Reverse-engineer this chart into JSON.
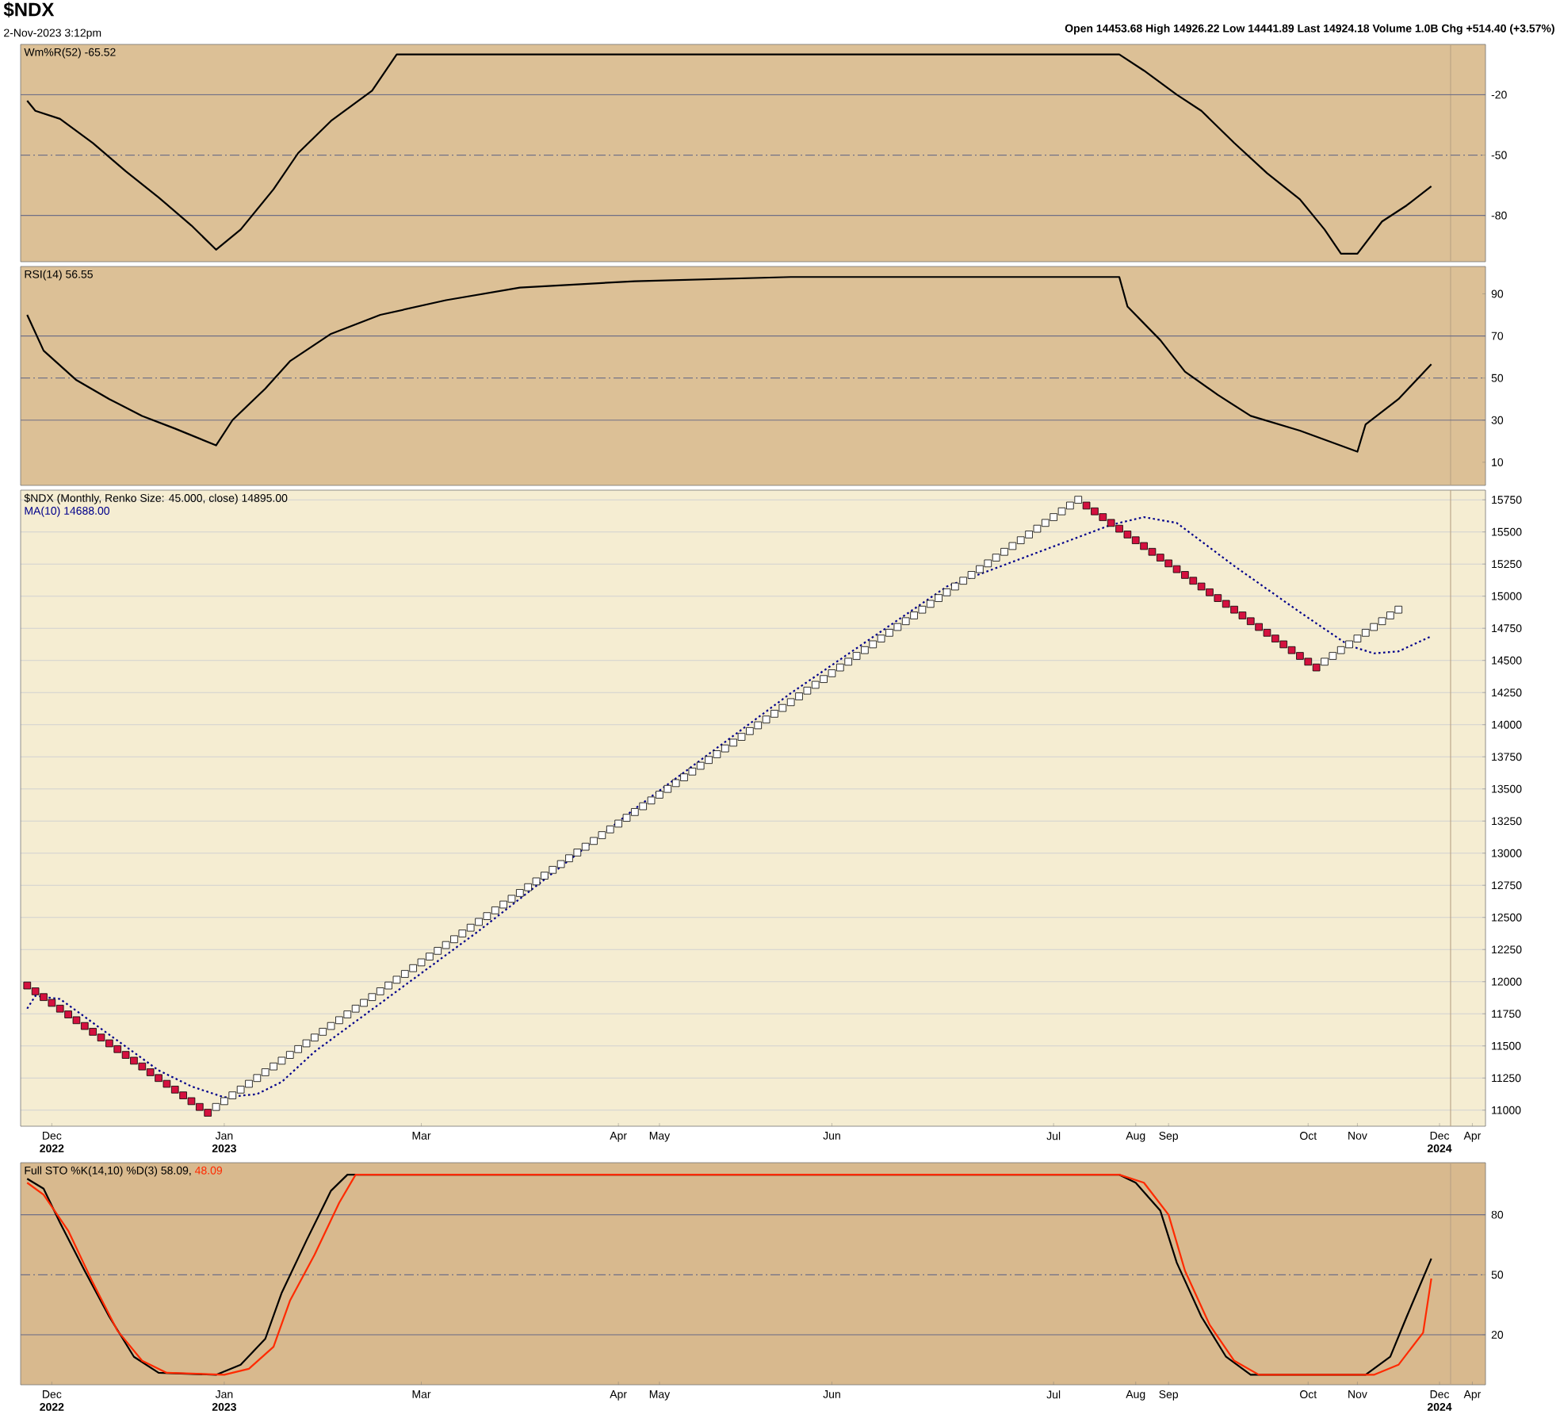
{
  "chart_data": [
    {
      "type": "line",
      "title": "$NDX",
      "subtitle": "2-Nov-2023 3:12pm",
      "annotations": [
        "Open 14453.68 High 14926.22 Low 14441.89 Last 14924.18 Volume 1.0B Chg +514.40 (+3.57%)"
      ],
      "ylim": [
        -103,
        5
      ],
      "yticks": [
        -20,
        -50,
        -80
      ],
      "legend": "top left",
      "ref_lines": [
        {
          "axis": "y",
          "value": -20,
          "color": "#6f6f86",
          "line_style": "solid"
        },
        {
          "axis": "y",
          "value": -50,
          "color": "#6f6f86",
          "line_style": "dashed"
        },
        {
          "axis": "y",
          "value": -80,
          "color": "#6f6f86",
          "line_style": "solid"
        }
      ],
      "series": [
        {
          "name": "Wm%R(52) -65.52",
          "color": "#000000",
          "values": [
            -23,
            -28,
            null,
            null,
            -32,
            null,
            null,
            null,
            -44,
            null,
            null,
            null,
            -58,
            null,
            null,
            null,
            -71,
            null,
            null,
            null,
            -85,
            null,
            null,
            -97,
            null,
            null,
            -87,
            null,
            null,
            null,
            -67,
            null,
            null,
            -49,
            null,
            null,
            null,
            -33,
            null,
            null,
            null,
            null,
            -18,
            null,
            null,
            0,
            null,
            null,
            null,
            null,
            null,
            null,
            null,
            null,
            null,
            null,
            null,
            null,
            null,
            null,
            null,
            null,
            null,
            null,
            null,
            null,
            null,
            null,
            null,
            null,
            null,
            null,
            null,
            null,
            null,
            null,
            null,
            null,
            null,
            null,
            null,
            null,
            null,
            null,
            null,
            null,
            null,
            null,
            null,
            null,
            null,
            null,
            null,
            null,
            null,
            null,
            null,
            null,
            null,
            null,
            null,
            null,
            null,
            null,
            null,
            null,
            null,
            null,
            null,
            null,
            null,
            null,
            null,
            null,
            null,
            null,
            null,
            null,
            null,
            null,
            null,
            null,
            null,
            null,
            null,
            null,
            null,
            null,
            null,
            null,
            null,
            null,
            null,
            0,
            null,
            null,
            -8,
            null,
            null,
            null,
            -20,
            null,
            null,
            -28,
            null,
            null,
            null,
            -44,
            null,
            null,
            null,
            -59,
            null,
            null,
            null,
            -72,
            null,
            null,
            -87,
            null,
            -99,
            null,
            -99,
            null,
            null,
            -83,
            null,
            null,
            -75,
            null,
            null,
            -65.52,
            null,
            null,
            null,
            null,
            null,
            null
          ]
        }
      ]
    },
    {
      "type": "line",
      "ylim": [
        -1,
        103
      ],
      "yticks": [
        90,
        70,
        50,
        30,
        10
      ],
      "legend": "top left",
      "ref_lines": [
        {
          "axis": "y",
          "value": 70,
          "color": "#6f6f86",
          "line_style": "solid"
        },
        {
          "axis": "y",
          "value": 50,
          "color": "#6f6f86",
          "line_style": "dashed"
        },
        {
          "axis": "y",
          "value": 30,
          "color": "#6f6f86",
          "line_style": "solid"
        }
      ],
      "series": [
        {
          "name": "RSI(14) 56.55",
          "color": "#000000",
          "values": [
            80,
            null,
            63,
            null,
            null,
            null,
            49,
            null,
            null,
            null,
            40,
            null,
            null,
            null,
            32,
            null,
            null,
            null,
            26,
            null,
            null,
            null,
            null,
            18,
            null,
            30,
            null,
            null,
            null,
            45,
            null,
            null,
            58,
            null,
            null,
            null,
            null,
            71,
            null,
            null,
            null,
            null,
            null,
            80,
            null,
            null,
            null,
            null,
            null,
            null,
            null,
            87,
            null,
            null,
            null,
            null,
            null,
            null,
            null,
            null,
            93,
            null,
            null,
            null,
            null,
            null,
            null,
            null,
            null,
            null,
            null,
            null,
            null,
            null,
            96,
            null,
            null,
            null,
            null,
            null,
            null,
            null,
            null,
            null,
            null,
            null,
            null,
            null,
            null,
            null,
            null,
            null,
            null,
            98,
            null,
            null,
            null,
            null,
            null,
            null,
            null,
            null,
            null,
            null,
            null,
            null,
            null,
            null,
            null,
            null,
            null,
            null,
            null,
            null,
            null,
            null,
            null,
            null,
            null,
            null,
            null,
            null,
            null,
            null,
            null,
            null,
            null,
            null,
            null,
            null,
            null,
            null,
            null,
            98,
            84,
            null,
            null,
            null,
            68,
            null,
            null,
            53,
            null,
            null,
            null,
            42,
            null,
            null,
            null,
            32,
            null,
            null,
            null,
            null,
            null,
            25,
            null,
            null,
            null,
            null,
            null,
            null,
            15,
            28,
            null,
            null,
            null,
            40,
            null,
            null,
            null,
            56.55,
            null,
            null,
            null,
            null,
            null,
            null
          ]
        }
      ]
    },
    {
      "type": "scatter",
      "grid": "y",
      "ylim": [
        10875,
        15825
      ],
      "yticks": [
        11000,
        11250,
        11500,
        11750,
        12000,
        12250,
        12500,
        12750,
        13000,
        13250,
        13500,
        13750,
        14000,
        14250,
        14500,
        14750,
        15000,
        15250,
        15500,
        15750
      ],
      "legend": "top left",
      "categories": [
        null,
        null,
        null,
        "Dec **2022**",
        null,
        null,
        null,
        null,
        null,
        null,
        null,
        null,
        null,
        null,
        null,
        null,
        null,
        null,
        null,
        null,
        null,
        null,
        null,
        null,
        "Jan **2023**",
        null,
        null,
        null,
        null,
        null,
        null,
        null,
        null,
        null,
        null,
        null,
        null,
        null,
        null,
        null,
        null,
        null,
        null,
        null,
        null,
        null,
        null,
        null,
        "Mar",
        null,
        null,
        null,
        null,
        null,
        null,
        null,
        null,
        null,
        null,
        null,
        null,
        null,
        null,
        null,
        null,
        null,
        null,
        null,
        null,
        null,
        null,
        null,
        "Apr",
        null,
        null,
        null,
        null,
        "May",
        null,
        null,
        null,
        null,
        null,
        null,
        null,
        null,
        null,
        null,
        null,
        null,
        null,
        null,
        null,
        null,
        null,
        null,
        null,
        null,
        "Jun",
        null,
        null,
        null,
        null,
        null,
        null,
        null,
        null,
        null,
        null,
        null,
        null,
        null,
        null,
        null,
        null,
        null,
        null,
        null,
        null,
        null,
        null,
        null,
        null,
        null,
        null,
        "Jul",
        null,
        null,
        null,
        null,
        null,
        null,
        null,
        null,
        null,
        "Aug",
        null,
        null,
        null,
        "Sep",
        null,
        null,
        null,
        null,
        null,
        null,
        null,
        null,
        null,
        null,
        null,
        null,
        null,
        null,
        null,
        null,
        "Oct",
        null,
        null,
        null,
        null,
        null,
        "Nov",
        null,
        null,
        null,
        null,
        null,
        null,
        null,
        null,
        null,
        "Dec **2024**",
        null,
        null,
        null,
        "Apr",
        null
      ],
      "series": [
        {
          "name": "$NDX (Monthly, Renko Size: 45.000, close) 14895.00",
          "color": "#ffffff",
          "marker": "square",
          "values": [
            null,
            null,
            null,
            null,
            null,
            null,
            null,
            null,
            null,
            null,
            null,
            null,
            null,
            null,
            null,
            null,
            null,
            null,
            null,
            null,
            null,
            null,
            null,
            11025,
            11070,
            11115,
            11160,
            11205,
            11250,
            11295,
            11340,
            11385,
            11430,
            11475,
            11520,
            11565,
            11610,
            11655,
            11700,
            11745,
            11790,
            11835,
            11880,
            11925,
            11970,
            12015,
            12060,
            12105,
            12150,
            12195,
            12240,
            12285,
            12330,
            12375,
            12420,
            12465,
            12510,
            12555,
            12600,
            12645,
            12690,
            12735,
            12780,
            12825,
            12870,
            12915,
            12960,
            13005,
            13050,
            13095,
            13140,
            13185,
            13230,
            13275,
            13320,
            13365,
            13410,
            13455,
            13500,
            13545,
            13590,
            13635,
            13680,
            13725,
            13770,
            13815,
            13860,
            13905,
            13950,
            13995,
            14040,
            14085,
            14130,
            14175,
            14220,
            14265,
            14310,
            14355,
            14400,
            14445,
            14490,
            14535,
            14580,
            14625,
            14670,
            14715,
            14760,
            14805,
            14850,
            14895,
            14940,
            14985,
            15030,
            15075,
            15120,
            15165,
            15210,
            15255,
            15300,
            15345,
            15390,
            15435,
            15480,
            15525,
            15570,
            15615,
            15660,
            15705,
            15750,
            null,
            null,
            null,
            null,
            null,
            null,
            null,
            null,
            null,
            null,
            null,
            null,
            null,
            null,
            null,
            null,
            null,
            null,
            null,
            null,
            null,
            null,
            null,
            null,
            null,
            null,
            null,
            null,
            null,
            14490,
            14535,
            14580,
            14625,
            14670,
            14715,
            14760,
            14805,
            14850,
            14895,
            null,
            null,
            null,
            null,
            null,
            null,
            null,
            null,
            null,
            null
          ]
        },
        {
          "color": "#d4113f",
          "marker": "square",
          "values": [
            11970,
            11925,
            11880,
            11835,
            11790,
            11745,
            11700,
            11655,
            11610,
            11565,
            11520,
            11475,
            11430,
            11385,
            11340,
            11295,
            11250,
            11205,
            11160,
            11115,
            11070,
            11025,
            10980,
            null,
            null,
            null,
            null,
            null,
            null,
            null,
            null,
            null,
            null,
            null,
            null,
            null,
            null,
            null,
            null,
            null,
            null,
            null,
            null,
            null,
            null,
            null,
            null,
            null,
            null,
            null,
            null,
            null,
            null,
            null,
            null,
            null,
            null,
            null,
            null,
            null,
            null,
            null,
            null,
            null,
            null,
            null,
            null,
            null,
            null,
            null,
            null,
            null,
            null,
            null,
            null,
            null,
            null,
            null,
            null,
            null,
            null,
            null,
            null,
            null,
            null,
            null,
            null,
            null,
            null,
            null,
            null,
            null,
            null,
            null,
            null,
            null,
            null,
            null,
            null,
            null,
            null,
            null,
            null,
            null,
            null,
            null,
            null,
            null,
            null,
            null,
            null,
            null,
            null,
            null,
            null,
            null,
            null,
            null,
            null,
            null,
            null,
            null,
            null,
            null,
            null,
            null,
            null,
            null,
            null,
            15705,
            15660,
            15615,
            15570,
            15525,
            15480,
            15435,
            15390,
            15345,
            15300,
            15255,
            15210,
            15165,
            15120,
            15075,
            15030,
            14985,
            14940,
            14895,
            14850,
            14805,
            14760,
            14715,
            14670,
            14625,
            14580,
            14535,
            14490,
            14445,
            null,
            null,
            null,
            null,
            null,
            null,
            null,
            null,
            null,
            null,
            null,
            null,
            null,
            null,
            null,
            null,
            null,
            null,
            null,
            null
          ]
        },
        {
          "name": "MA(10) 14688.00",
          "type": "line",
          "color": "#00008b",
          "line_style": "dotted",
          "values": [
            11790,
            11890,
            null,
            null,
            11865,
            null,
            null,
            null,
            11680,
            null,
            null,
            null,
            11495,
            null,
            null,
            null,
            11310,
            null,
            null,
            null,
            11185,
            null,
            null,
            null,
            11100,
            null,
            null,
            null,
            11125,
            null,
            null,
            11220,
            null,
            null,
            null,
            11455,
            null,
            null,
            null,
            null,
            null,
            null,
            null,
            null,
            null,
            null,
            null,
            null,
            null,
            null,
            null,
            null,
            null,
            null,
            null,
            12395,
            null,
            null,
            null,
            null,
            null,
            null,
            null,
            null,
            null,
            null,
            null,
            null,
            null,
            null,
            null,
            null,
            null,
            null,
            13345,
            null,
            null,
            null,
            null,
            null,
            null,
            null,
            null,
            null,
            null,
            null,
            null,
            null,
            null,
            null,
            null,
            null,
            null,
            14245,
            null,
            null,
            null,
            null,
            null,
            null,
            null,
            null,
            null,
            null,
            null,
            null,
            null,
            null,
            null,
            null,
            null,
            null,
            15075,
            null,
            null,
            null,
            null,
            null,
            null,
            null,
            null,
            null,
            null,
            null,
            null,
            null,
            null,
            null,
            null,
            null,
            null,
            null,
            15555,
            null,
            null,
            null,
            15615,
            null,
            null,
            null,
            15570,
            null,
            null,
            null,
            null,
            null,
            null,
            15235,
            null,
            null,
            null,
            null,
            null,
            null,
            null,
            14875,
            null,
            null,
            null,
            null,
            null,
            14615,
            null,
            null,
            14555,
            null,
            null,
            14570,
            null,
            null,
            null,
            14688,
            null,
            null,
            null,
            null,
            null,
            null
          ]
        }
      ]
    },
    {
      "type": "line",
      "ylim": [
        -5,
        106
      ],
      "yticks": [
        80,
        50,
        20
      ],
      "legend": "top left",
      "categories": [
        null,
        null,
        null,
        "Dec **2022**",
        null,
        null,
        null,
        null,
        null,
        null,
        null,
        null,
        null,
        null,
        null,
        null,
        null,
        null,
        null,
        null,
        null,
        null,
        null,
        null,
        "Jan **2023**",
        null,
        null,
        null,
        null,
        null,
        null,
        null,
        null,
        null,
        null,
        null,
        null,
        null,
        null,
        null,
        null,
        null,
        null,
        null,
        null,
        null,
        null,
        null,
        "Mar",
        null,
        null,
        null,
        null,
        null,
        null,
        null,
        null,
        null,
        null,
        null,
        null,
        null,
        null,
        null,
        null,
        null,
        null,
        null,
        null,
        null,
        null,
        null,
        "Apr",
        null,
        null,
        null,
        null,
        "May",
        null,
        null,
        null,
        null,
        null,
        null,
        null,
        null,
        null,
        null,
        null,
        null,
        null,
        null,
        null,
        null,
        null,
        null,
        null,
        null,
        "Jun",
        null,
        null,
        null,
        null,
        null,
        null,
        null,
        null,
        null,
        null,
        null,
        null,
        null,
        null,
        null,
        null,
        null,
        null,
        null,
        null,
        null,
        null,
        null,
        null,
        null,
        null,
        "Jul",
        null,
        null,
        null,
        null,
        null,
        null,
        null,
        null,
        null,
        "Aug",
        null,
        null,
        null,
        "Sep",
        null,
        null,
        null,
        null,
        null,
        null,
        null,
        null,
        null,
        null,
        null,
        null,
        null,
        null,
        null,
        null,
        "Oct",
        null,
        null,
        null,
        null,
        null,
        "Nov",
        null,
        null,
        null,
        null,
        null,
        null,
        null,
        null,
        null,
        "Dec **2024**",
        null,
        null,
        null,
        "Apr",
        null
      ],
      "ref_lines": [
        {
          "axis": "y",
          "value": 80,
          "color": "#6f6f86",
          "line_style": "solid"
        },
        {
          "axis": "y",
          "value": 50,
          "color": "#6f6f86",
          "line_style": "dashed"
        },
        {
          "axis": "y",
          "value": 20,
          "color": "#6f6f86",
          "line_style": "solid"
        }
      ],
      "series": [
        {
          "name": "Full STO %K(14,10) %D(3) 58.09,",
          "color": "#000000",
          "values": [
            98,
            null,
            93,
            null,
            76,
            null,
            null,
            52,
            null,
            null,
            29,
            null,
            null,
            9,
            null,
            null,
            1,
            null,
            null,
            null,
            null,
            null,
            null,
            0,
            null,
            null,
            5,
            null,
            null,
            18,
            null,
            41,
            null,
            null,
            67,
            null,
            null,
            92,
            null,
            100,
            null,
            null,
            null,
            null,
            null,
            null,
            null,
            null,
            null,
            null,
            null,
            null,
            null,
            null,
            null,
            null,
            null,
            null,
            null,
            null,
            null,
            null,
            null,
            null,
            null,
            null,
            null,
            null,
            null,
            null,
            null,
            null,
            null,
            null,
            null,
            null,
            null,
            null,
            null,
            null,
            null,
            null,
            null,
            null,
            null,
            null,
            null,
            null,
            null,
            null,
            null,
            null,
            null,
            null,
            null,
            null,
            null,
            null,
            null,
            null,
            null,
            null,
            null,
            null,
            null,
            null,
            null,
            null,
            null,
            null,
            null,
            null,
            null,
            null,
            null,
            null,
            null,
            null,
            null,
            null,
            null,
            null,
            null,
            null,
            null,
            null,
            null,
            null,
            null,
            null,
            null,
            null,
            null,
            100,
            null,
            96,
            null,
            null,
            82,
            null,
            56,
            null,
            null,
            29,
            null,
            null,
            9,
            null,
            null,
            0,
            null,
            null,
            null,
            null,
            null,
            null,
            null,
            null,
            null,
            null,
            null,
            null,
            null,
            0,
            null,
            null,
            9,
            null,
            29,
            null,
            null,
            58.09,
            null,
            null,
            null,
            null,
            null,
            null
          ]
        },
        {
          "name": "48.09",
          "color": "#ff2a00",
          "values": [
            96,
            null,
            90,
            null,
            null,
            72,
            null,
            null,
            46,
            null,
            null,
            22,
            null,
            null,
            7,
            null,
            null,
            1,
            null,
            null,
            null,
            null,
            null,
            null,
            0,
            null,
            null,
            3,
            null,
            null,
            14,
            null,
            37,
            null,
            null,
            60,
            null,
            null,
            86,
            null,
            100,
            null,
            null,
            null,
            null,
            null,
            null,
            null,
            null,
            null,
            null,
            null,
            null,
            null,
            null,
            null,
            null,
            null,
            null,
            null,
            null,
            null,
            null,
            null,
            null,
            null,
            null,
            null,
            null,
            null,
            null,
            null,
            null,
            null,
            null,
            null,
            null,
            null,
            null,
            null,
            null,
            null,
            null,
            null,
            null,
            null,
            null,
            null,
            null,
            null,
            null,
            null,
            null,
            null,
            null,
            null,
            null,
            null,
            null,
            null,
            null,
            null,
            null,
            null,
            null,
            null,
            null,
            null,
            null,
            null,
            null,
            null,
            null,
            null,
            null,
            null,
            null,
            null,
            null,
            null,
            null,
            null,
            null,
            null,
            null,
            null,
            null,
            null,
            null,
            null,
            null,
            null,
            null,
            100,
            null,
            null,
            96,
            null,
            null,
            80,
            null,
            52,
            null,
            null,
            25,
            null,
            null,
            7,
            null,
            null,
            0,
            null,
            null,
            null,
            null,
            null,
            null,
            null,
            null,
            null,
            null,
            null,
            null,
            null,
            0,
            null,
            null,
            5,
            null,
            null,
            21,
            48.09,
            null,
            null,
            null,
            null,
            null,
            null
          ]
        }
      ]
    }
  ]
}
